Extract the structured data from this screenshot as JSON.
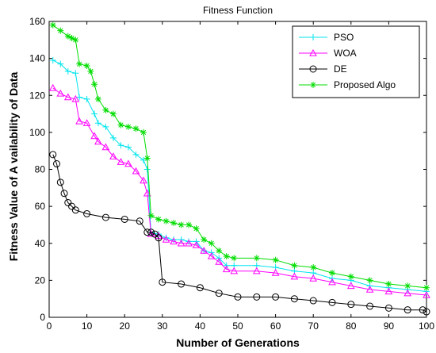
{
  "chart_data": {
    "type": "line",
    "title": "Fitness Function",
    "xlabel": "Number of Generations",
    "ylabel": "Fitness Value of A vailability of Data",
    "xlim": [
      0,
      100
    ],
    "ylim": [
      0,
      160
    ],
    "xticks": [
      0,
      10,
      20,
      30,
      40,
      50,
      60,
      70,
      80,
      90,
      100
    ],
    "yticks": [
      0,
      20,
      40,
      60,
      80,
      100,
      120,
      140,
      160
    ],
    "grid": false,
    "legend_position": "top-right",
    "series": [
      {
        "name": "PSO",
        "color": "#00e5ee",
        "marker": "plus",
        "points": [
          [
            1,
            139
          ],
          [
            3,
            137
          ],
          [
            5,
            133
          ],
          [
            7,
            132
          ],
          [
            8,
            119
          ],
          [
            10,
            118
          ],
          [
            12,
            110
          ],
          [
            13,
            105
          ],
          [
            15,
            103
          ],
          [
            17,
            97
          ],
          [
            19,
            93
          ],
          [
            21,
            92
          ],
          [
            23,
            88
          ],
          [
            25,
            85
          ],
          [
            26,
            80
          ],
          [
            27,
            46
          ],
          [
            29,
            45
          ],
          [
            31,
            43
          ],
          [
            33,
            42
          ],
          [
            35,
            42
          ],
          [
            37,
            41
          ],
          [
            39,
            41
          ],
          [
            41,
            36
          ],
          [
            43,
            35
          ],
          [
            45,
            32
          ],
          [
            47,
            28
          ],
          [
            49,
            28
          ],
          [
            55,
            28
          ],
          [
            60,
            27
          ],
          [
            65,
            25
          ],
          [
            70,
            24
          ],
          [
            75,
            21
          ],
          [
            80,
            20
          ],
          [
            85,
            17
          ],
          [
            90,
            16
          ],
          [
            95,
            15
          ],
          [
            100,
            14
          ]
        ]
      },
      {
        "name": "WOA",
        "color": "#ff00ff",
        "marker": "triangle",
        "points": [
          [
            1,
            124
          ],
          [
            3,
            121
          ],
          [
            5,
            119
          ],
          [
            7,
            118
          ],
          [
            8,
            106
          ],
          [
            10,
            105
          ],
          [
            12,
            98
          ],
          [
            13,
            95
          ],
          [
            15,
            92
          ],
          [
            17,
            87
          ],
          [
            19,
            84
          ],
          [
            21,
            83
          ],
          [
            23,
            79
          ],
          [
            25,
            74
          ],
          [
            26,
            67
          ],
          [
            27,
            45
          ],
          [
            29,
            44
          ],
          [
            31,
            42
          ],
          [
            33,
            41
          ],
          [
            35,
            40
          ],
          [
            37,
            40
          ],
          [
            39,
            39
          ],
          [
            41,
            36
          ],
          [
            43,
            33
          ],
          [
            45,
            30
          ],
          [
            47,
            26
          ],
          [
            49,
            25
          ],
          [
            55,
            25
          ],
          [
            60,
            24
          ],
          [
            65,
            22
          ],
          [
            70,
            21
          ],
          [
            75,
            19
          ],
          [
            80,
            17
          ],
          [
            85,
            15
          ],
          [
            90,
            14
          ],
          [
            95,
            13
          ],
          [
            100,
            12
          ]
        ]
      },
      {
        "name": "DE",
        "color": "#000000",
        "marker": "circle",
        "points": [
          [
            1,
            88
          ],
          [
            2,
            83
          ],
          [
            3,
            73
          ],
          [
            4,
            67
          ],
          [
            5,
            62
          ],
          [
            6,
            60
          ],
          [
            7,
            58
          ],
          [
            10,
            56
          ],
          [
            15,
            54
          ],
          [
            20,
            53
          ],
          [
            24,
            52
          ],
          [
            26,
            46
          ],
          [
            27,
            46
          ],
          [
            28,
            45
          ],
          [
            29,
            43
          ],
          [
            30,
            19
          ],
          [
            35,
            18
          ],
          [
            40,
            16
          ],
          [
            45,
            13
          ],
          [
            50,
            11
          ],
          [
            55,
            11
          ],
          [
            60,
            11
          ],
          [
            65,
            10
          ],
          [
            70,
            9
          ],
          [
            75,
            8
          ],
          [
            80,
            7
          ],
          [
            85,
            6
          ],
          [
            90,
            5
          ],
          [
            95,
            4
          ],
          [
            99,
            4
          ],
          [
            100,
            3
          ]
        ]
      },
      {
        "name": "Proposed Algo",
        "color": "#00dd00",
        "marker": "star",
        "points": [
          [
            1,
            158
          ],
          [
            3,
            155
          ],
          [
            5,
            152
          ],
          [
            6,
            151
          ],
          [
            7,
            150
          ],
          [
            8,
            137
          ],
          [
            10,
            136
          ],
          [
            11,
            133
          ],
          [
            12,
            126
          ],
          [
            13,
            118
          ],
          [
            15,
            112
          ],
          [
            17,
            110
          ],
          [
            19,
            104
          ],
          [
            21,
            103
          ],
          [
            23,
            102
          ],
          [
            25,
            100
          ],
          [
            26,
            86
          ],
          [
            27,
            55
          ],
          [
            29,
            53
          ],
          [
            31,
            52
          ],
          [
            33,
            51
          ],
          [
            35,
            50
          ],
          [
            37,
            50
          ],
          [
            39,
            48
          ],
          [
            41,
            42
          ],
          [
            43,
            40
          ],
          [
            45,
            36
          ],
          [
            47,
            33
          ],
          [
            49,
            32
          ],
          [
            55,
            32
          ],
          [
            60,
            31
          ],
          [
            65,
            28
          ],
          [
            70,
            27
          ],
          [
            75,
            24
          ],
          [
            80,
            22
          ],
          [
            85,
            20
          ],
          [
            90,
            18
          ],
          [
            95,
            17
          ],
          [
            100,
            16
          ]
        ]
      }
    ]
  }
}
